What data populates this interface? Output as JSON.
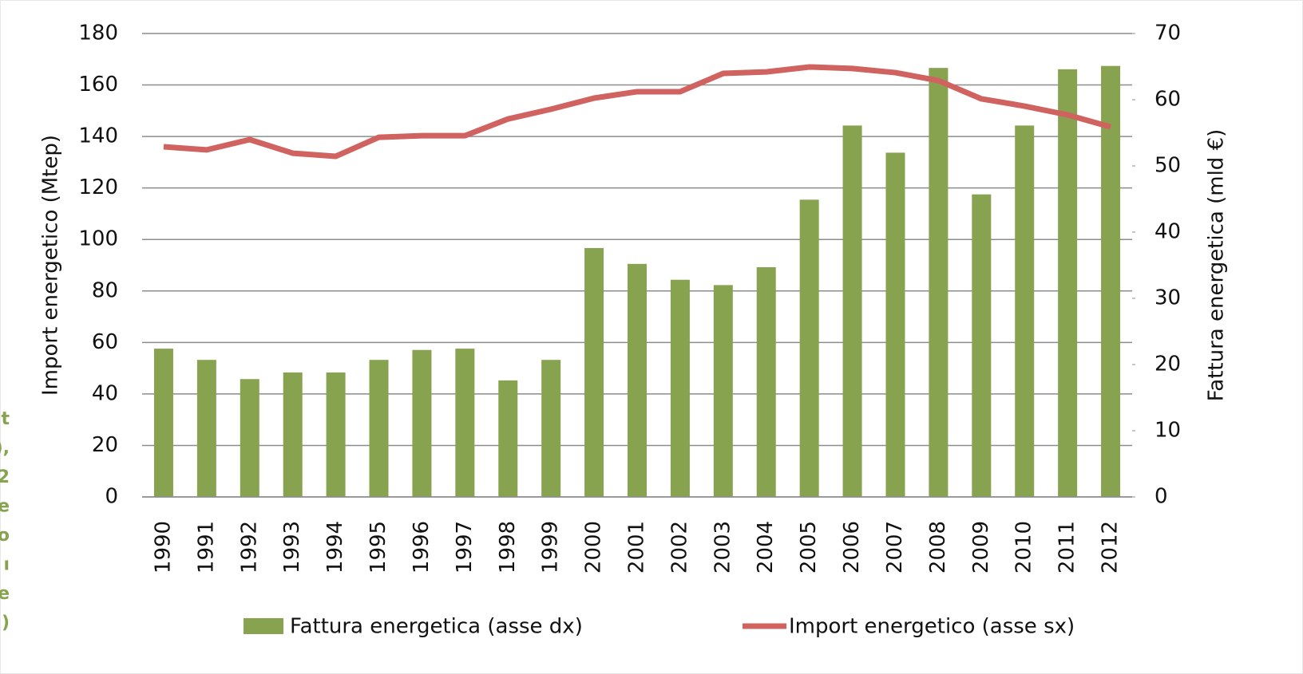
{
  "chart_data": {
    "type": "bar",
    "categories": [
      "1990",
      "1991",
      "1992",
      "1993",
      "1994",
      "1995",
      "1996",
      "1997",
      "1998",
      "1999",
      "2000",
      "2001",
      "2002",
      "2003",
      "2004",
      "2005",
      "2006",
      "2007",
      "2008",
      "2009",
      "2010",
      "2011",
      "2012"
    ],
    "series": [
      {
        "name": "Fattura energetica (asse dx)",
        "color": "#88a350",
        "type": "bar",
        "axis": "y2",
        "values": [
          22.4,
          20.7,
          17.8,
          18.8,
          18.8,
          20.7,
          22.2,
          22.4,
          17.6,
          20.7,
          37.6,
          35.2,
          32.8,
          32.0,
          34.7,
          44.9,
          56.1,
          52.0,
          64.8,
          45.7,
          56.1,
          64.6,
          65.1
        ]
      },
      {
        "name": "Import energetico (asse sx)",
        "color": "#d0625f",
        "type": "line",
        "values": [
          136,
          134.8,
          138.8,
          133.5,
          132.3,
          139.7,
          140.3,
          140.3,
          146.8,
          150.6,
          154.9,
          157.4,
          157.4,
          164.5,
          165.1,
          167,
          166.4,
          164.8,
          161.7,
          154.6,
          151.8,
          148.4,
          143.7
        ]
      }
    ],
    "y_label": "Import energetico (Mtep)",
    "y2_label": "Fattura energetica (mld €)",
    "ylim": [
      0,
      180
    ],
    "yticks": [
      0,
      20,
      40,
      60,
      80,
      100,
      120,
      140,
      160,
      180
    ],
    "y2lim": [
      0,
      70
    ],
    "y2ticks": [
      0,
      10,
      20,
      30,
      40,
      50,
      60,
      70
    ],
    "grid": true,
    "legend": "bottom",
    "side_fragment": [
      "t",
      "),",
      "2",
      "e",
      "o",
      "ı",
      "e",
      ")"
    ]
  }
}
